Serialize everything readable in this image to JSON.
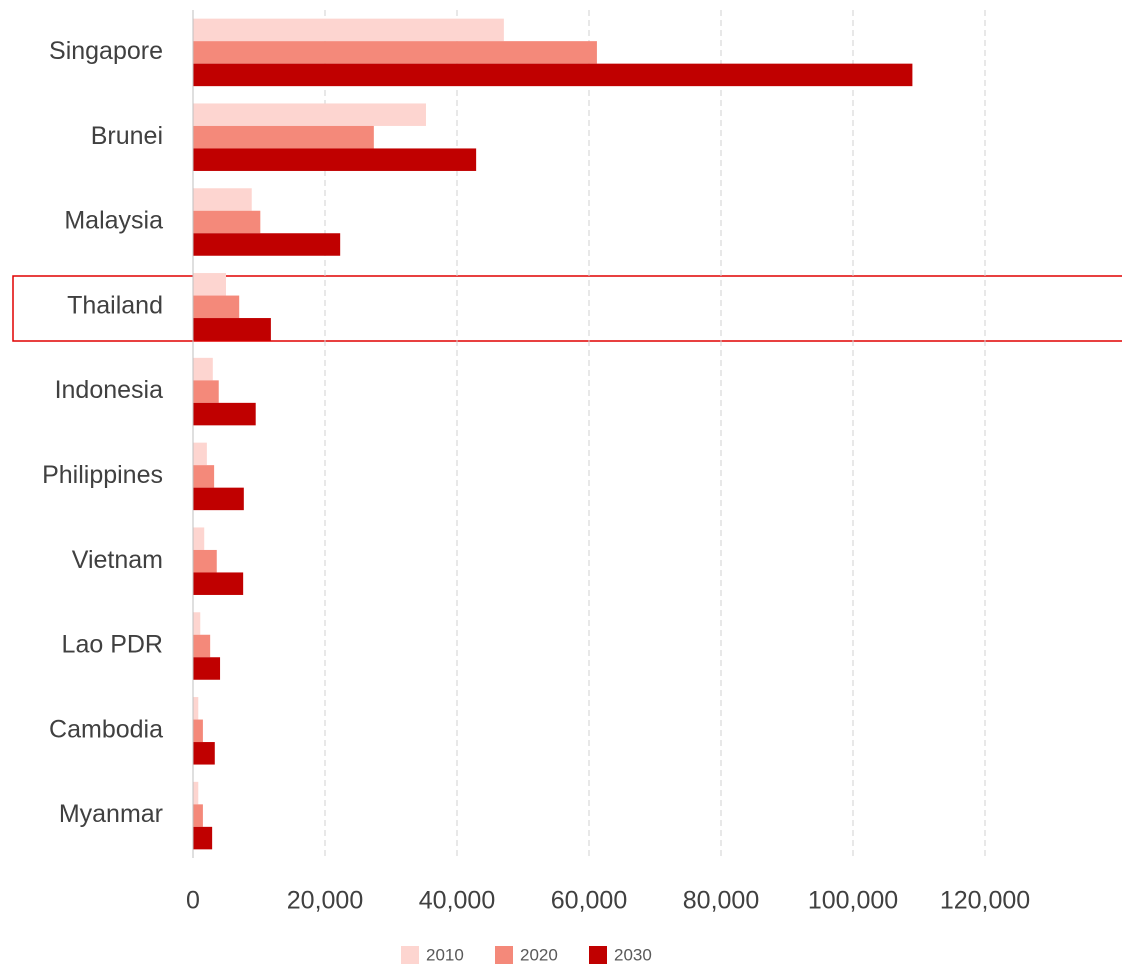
{
  "chart_data": {
    "type": "bar",
    "orientation": "horizontal",
    "categories": [
      "Singapore",
      "Brunei",
      "Malaysia",
      "Thailand",
      "Indonesia",
      "Philippines",
      "Vietnam",
      "Lao PDR",
      "Cambodia",
      "Myanmar"
    ],
    "series": [
      {
        "name": "2010",
        "color": "#fdd5d0",
        "values": [
          47100,
          35300,
          8900,
          5000,
          3000,
          2100,
          1700,
          1100,
          800,
          800
        ]
      },
      {
        "name": "2020",
        "color": "#f4897a",
        "values": [
          61200,
          27400,
          10200,
          7000,
          3900,
          3200,
          3600,
          2600,
          1500,
          1500
        ]
      },
      {
        "name": "2030",
        "color": "#c00000",
        "values": [
          109000,
          42900,
          22300,
          11800,
          9500,
          7700,
          7600,
          4100,
          3300,
          2900
        ]
      }
    ],
    "xlim": [
      0,
      140000
    ],
    "xticks": [
      0,
      {
        "value": 20000,
        "label": "20,000"
      },
      {
        "value": 40000,
        "label": "40,000"
      },
      {
        "value": 60000,
        "label": "60,000"
      },
      {
        "value": 80000,
        "label": "80,000"
      },
      {
        "value": 100000,
        "label": "100,000"
      },
      {
        "value": 120000,
        "label": "120,000"
      }
    ],
    "grid": true,
    "legend": "bottom"
  }
}
